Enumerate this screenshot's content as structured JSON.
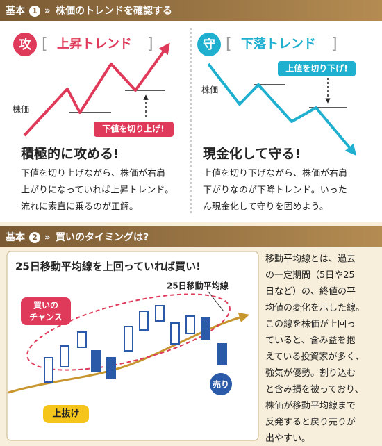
{
  "section1": {
    "badge": "基本",
    "number": "1",
    "title": "株価のトレンドを確認する",
    "left": {
      "icon": "攻",
      "label": "上昇トレンド",
      "axis_label": "株価",
      "callout": "下値を切り上げ!",
      "heading": "積極的に攻める!",
      "body": [
        "下値を切り上げながら、株価が右肩",
        "上がりになっていれば上昇トレンド。",
        "流れに素直に乗るのが正解。"
      ]
    },
    "right": {
      "icon": "守",
      "label": "下落トレンド",
      "axis_label": "株価",
      "callout": "上値を切り下げ!",
      "heading": "現金化して守る!",
      "body": [
        "上値を切り下げながら、株価が右肩",
        "下がりなのが下降トレンド。いった",
        "ん現金化して守りを固めよう。"
      ]
    }
  },
  "section2": {
    "badge": "基本",
    "number": "2",
    "title": "買いのタイミングは?",
    "chart_title": "25日移動平均線を上回っていれば買い!",
    "ma_label": "25日移動平均線",
    "buy_label": [
      "買いの",
      "チャンス"
    ],
    "breakout_label": "上抜け",
    "sell_label": "売り",
    "body": [
      "移動平均線とは、過去",
      "の一定期間（5日や25",
      "日など）の、終値の平",
      "均値の変化を示した線。",
      "この線を株価が上回っ",
      "ていると、含み益を抱",
      "えている投資家が多く、",
      "強気が優勢。割り込む",
      "と含み損を被っており、",
      "株価が移動平均線まで",
      "反発すると戻り売りが",
      "出やすい。"
    ]
  }
}
